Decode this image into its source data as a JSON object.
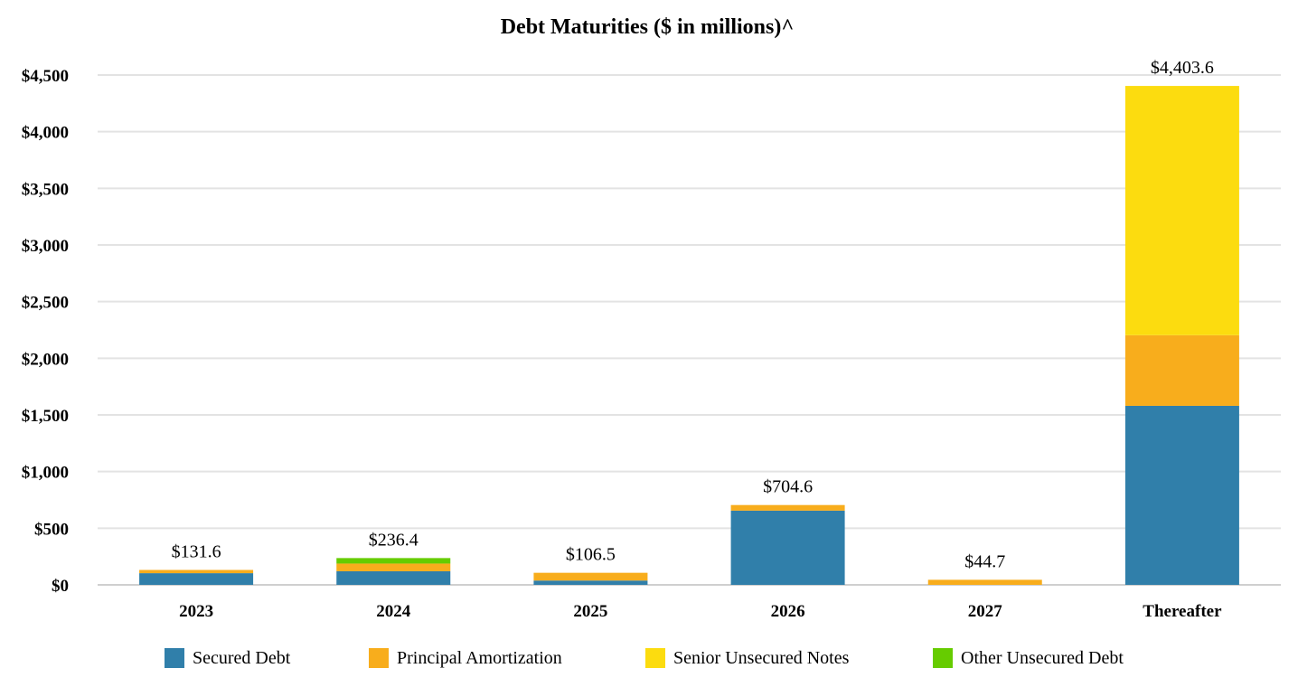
{
  "chart_data": {
    "type": "bar",
    "stacked": true,
    "title": "Debt Maturities ($ in millions)^",
    "xlabel": "",
    "ylabel": "",
    "ylim": [
      0,
      4500
    ],
    "yticks": [
      "$0",
      "$500",
      "$1,000",
      "$1,500",
      "$2,000",
      "$2,500",
      "$3,000",
      "$3,500",
      "$4,000",
      "$4,500"
    ],
    "ytick_values": [
      0,
      500,
      1000,
      1500,
      2000,
      2500,
      3000,
      3500,
      4000,
      4500
    ],
    "grid": true,
    "legend_position": "bottom",
    "categories": [
      "2023",
      "2024",
      "2025",
      "2026",
      "2027",
      "Thereafter"
    ],
    "totals": [
      "$131.6",
      "$236.4",
      "$106.5",
      "$704.6",
      "$44.7",
      "$4,403.6"
    ],
    "series": [
      {
        "name": "Secured Debt",
        "color": "#307faa",
        "values": [
          103,
          120,
          38,
          655,
          0,
          1580
        ]
      },
      {
        "name": "Principal Amortization",
        "color": "#f8ad1c",
        "values": [
          28.6,
          68,
          68.5,
          49.6,
          44.7,
          623.6
        ]
      },
      {
        "name": "Senior Unsecured Notes",
        "color": "#fcdc0f",
        "values": [
          0,
          0,
          0,
          0,
          0,
          2200
        ]
      },
      {
        "name": "Other Unsecured Debt",
        "color": "#66cc00",
        "values": [
          0,
          48.4,
          0,
          0,
          0,
          0
        ]
      }
    ]
  }
}
